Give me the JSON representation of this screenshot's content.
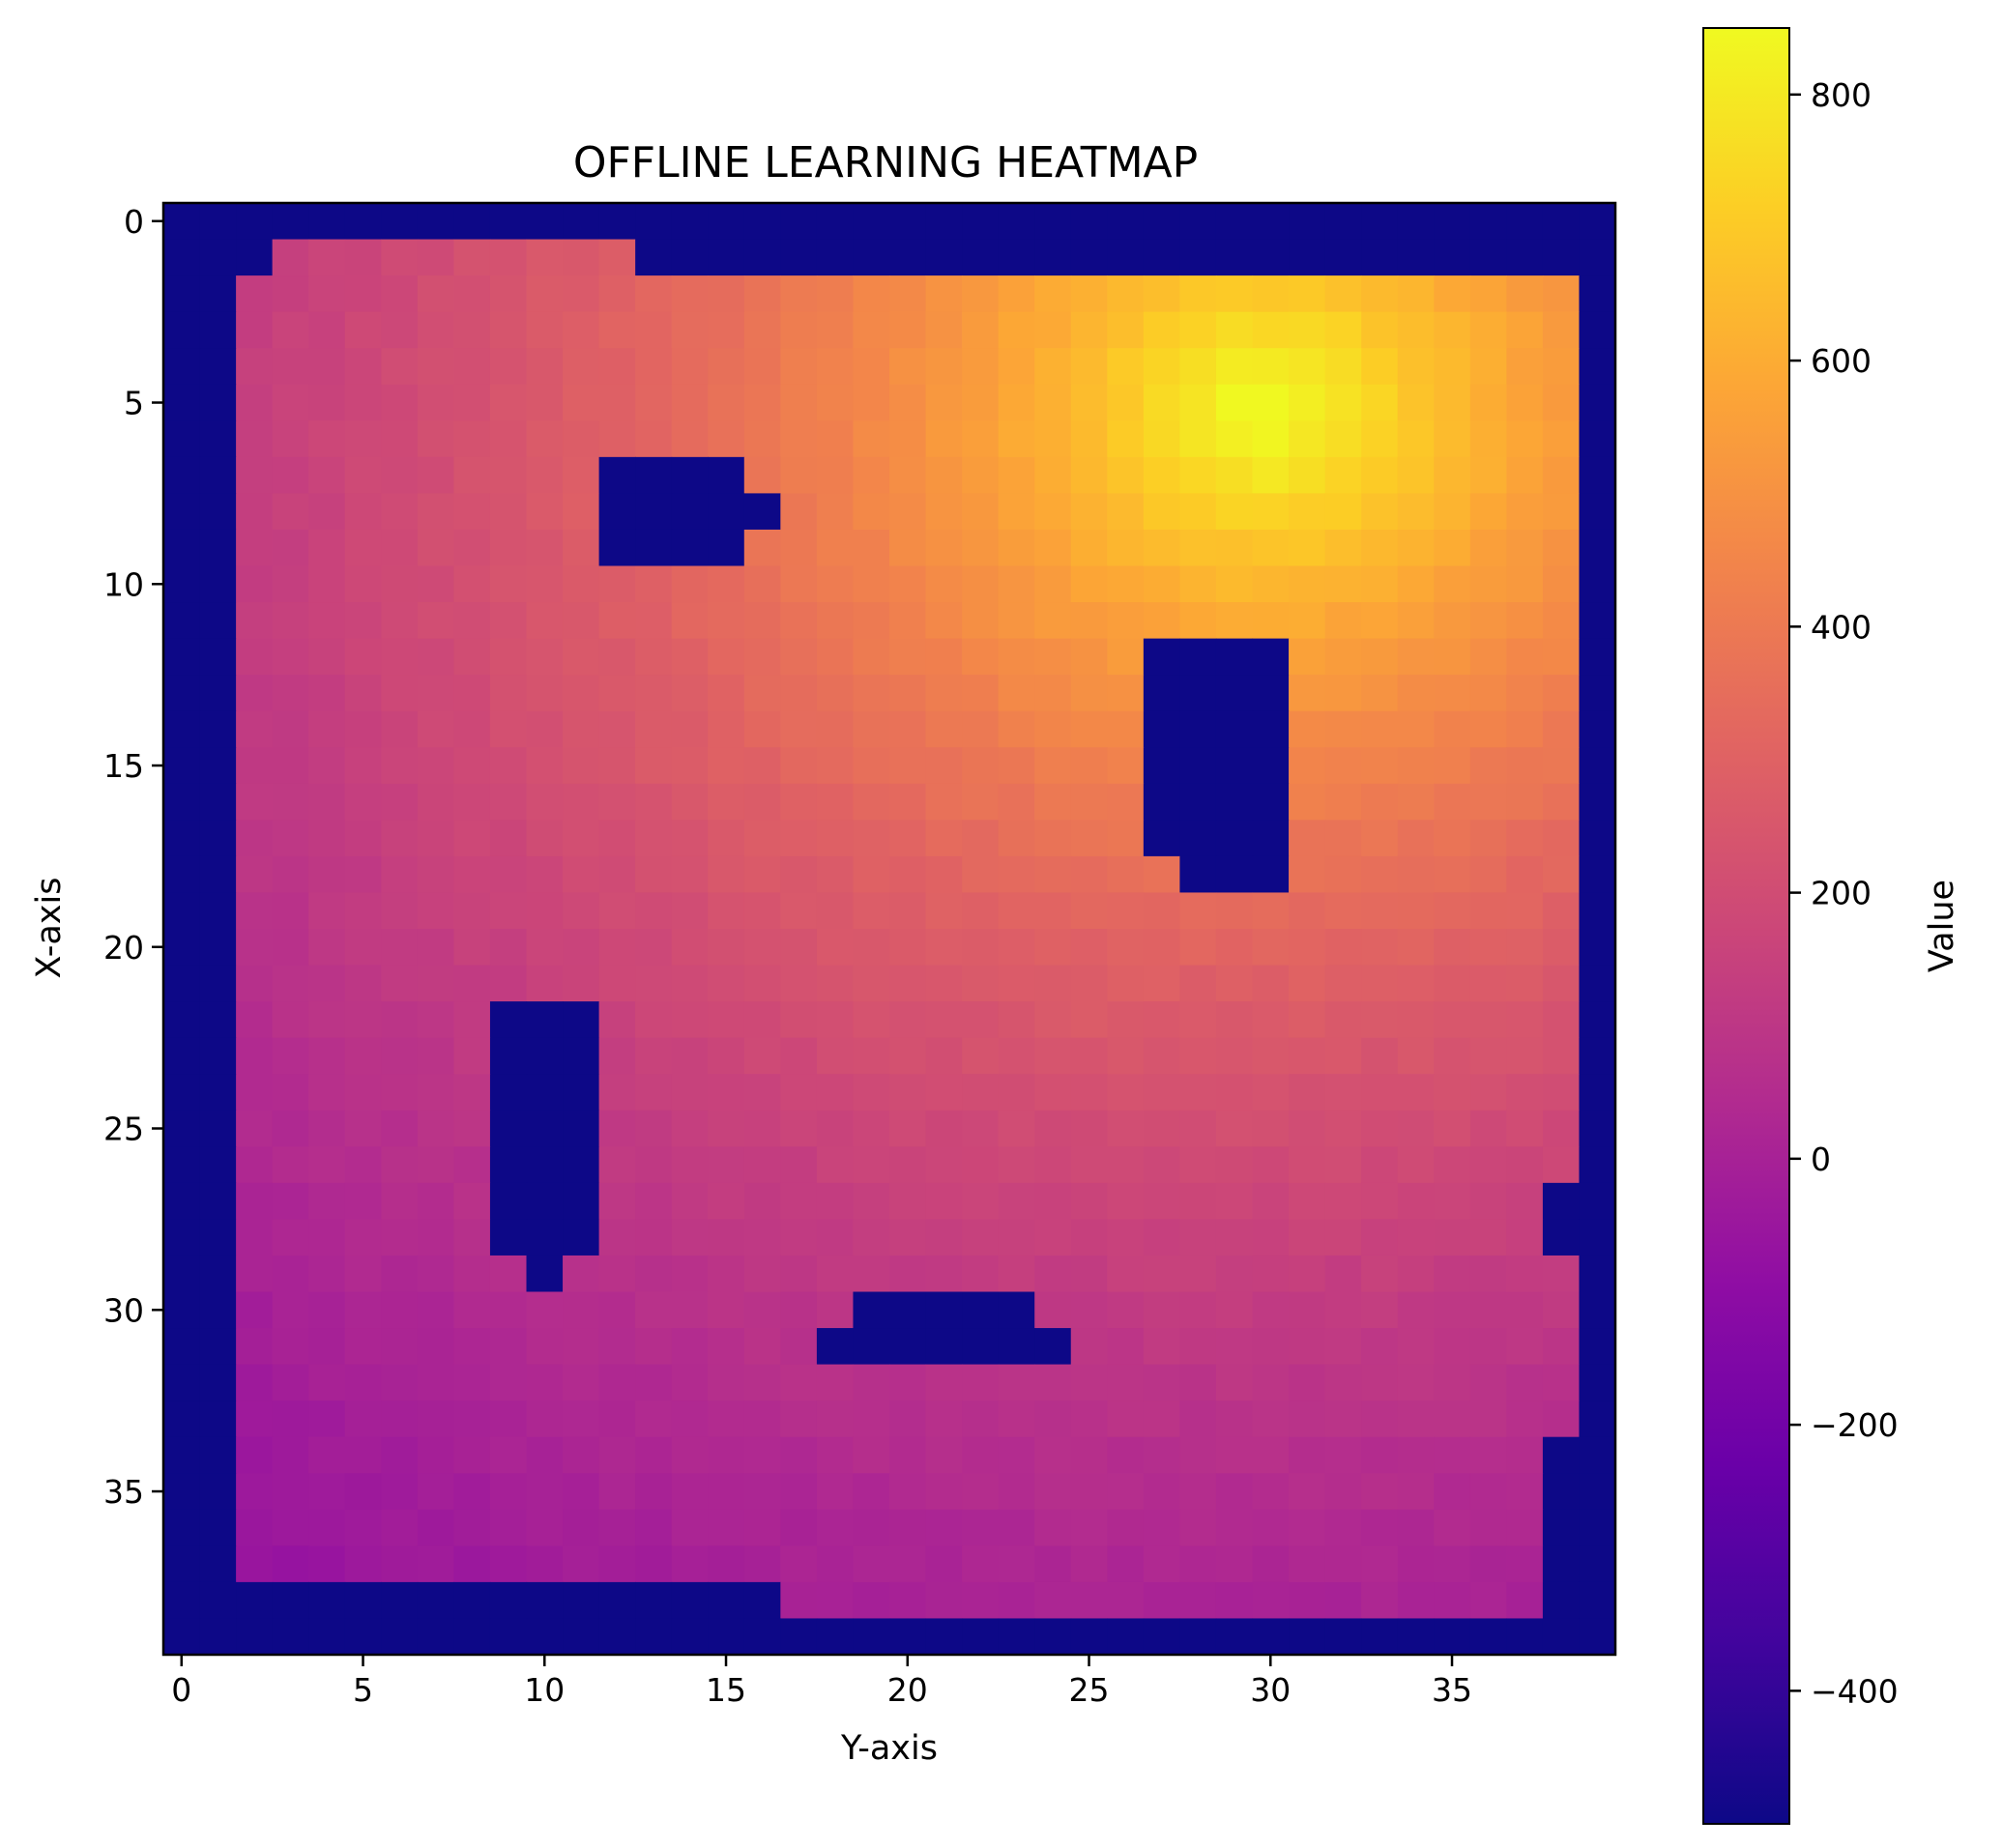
{
  "chart_data": {
    "type": "heatmap",
    "title": "OFFLINE LEARNING HEATMAP",
    "xlabel": "Y-axis",
    "ylabel": "X-axis",
    "grid_rows": 40,
    "grid_cols": 40,
    "x_ticks": [
      0,
      5,
      10,
      15,
      20,
      25,
      30,
      35
    ],
    "y_ticks": [
      0,
      5,
      10,
      15,
      20,
      25,
      30,
      35
    ],
    "colorbar": {
      "label": "Value",
      "colormap": "plasma",
      "vmin": -500,
      "vmax": 850,
      "ticks": [
        800,
        600,
        400,
        200,
        0,
        -200,
        -400
      ]
    },
    "field": {
      "description_of_values": "approximate value surface; peak near row 5, column 30",
      "peak": {
        "row": 5.3,
        "col": 29.8,
        "value": 850
      },
      "base_value": -130,
      "wall_value": -500
    },
    "wall_regions": [
      {
        "rows": [
          0,
          39
        ],
        "cols": [
          0,
          1
        ]
      },
      {
        "rows": [
          0,
          0
        ],
        "cols": [
          0,
          39
        ]
      },
      {
        "rows": [
          1,
          1
        ],
        "cols": [
          0,
          2
        ]
      },
      {
        "rows": [
          1,
          1
        ],
        "cols": [
          13,
          39
        ]
      },
      {
        "rows": [
          0,
          39
        ],
        "cols": [
          39,
          39
        ]
      },
      {
        "rows": [
          39,
          39
        ],
        "cols": [
          0,
          39
        ]
      },
      {
        "rows": [
          38,
          38
        ],
        "cols": [
          0,
          16
        ]
      },
      {
        "rows": [
          38,
          38
        ],
        "cols": [
          38,
          39
        ]
      },
      {
        "rows": [
          34,
          39
        ],
        "cols": [
          38,
          39
        ]
      },
      {
        "rows": [
          27,
          28
        ],
        "cols": [
          38,
          39
        ]
      },
      {
        "rows": [
          7,
          9
        ],
        "cols": [
          12,
          15
        ]
      },
      {
        "rows": [
          8,
          8
        ],
        "cols": [
          16,
          16
        ]
      },
      {
        "rows": [
          12,
          17
        ],
        "cols": [
          27,
          30
        ]
      },
      {
        "rows": [
          18,
          18
        ],
        "cols": [
          28,
          30
        ]
      },
      {
        "rows": [
          22,
          28
        ],
        "cols": [
          9,
          11
        ]
      },
      {
        "rows": [
          29,
          29
        ],
        "cols": [
          10,
          10
        ]
      },
      {
        "rows": [
          30,
          30
        ],
        "cols": [
          19,
          23
        ]
      },
      {
        "rows": [
          31,
          31
        ],
        "cols": [
          18,
          24
        ]
      }
    ],
    "colors": {
      "wall": "#0d0887",
      "frame": "#000000"
    }
  }
}
